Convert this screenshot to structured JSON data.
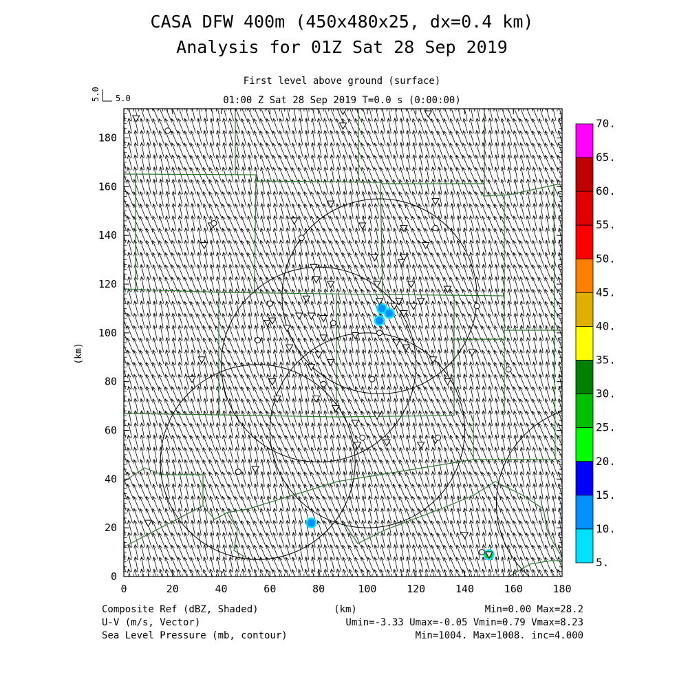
{
  "header": {
    "title_line1": "CASA DFW 400m (450x480x25, dx=0.4 km)",
    "title_line2": "Analysis for 01Z Sat 28 Sep 2019",
    "level": "First level above ground (surface)",
    "time": "01:00 Z Sat 28 Sep 2019    T=0.0 s (0:00:00)"
  },
  "vector_key": {
    "label": "5.0",
    "axis_label": "5.0"
  },
  "footer": {
    "field1": "Composite Ref (dBZ, Shaded)",
    "field2": "U-V (m/s, Vector)",
    "field3": "Sea Level Pressure (mb, contour)",
    "xunit": "(km)",
    "stats1": "Min=0.00 Max=28.2",
    "stats2": "Umin=-3.33 Umax=-0.05 Vmin=0.79 Vmax=8.23",
    "stats3": "Min=1004. Max=1008. inc=4.000"
  },
  "colorbar": {
    "labels": [
      "70.",
      "65.",
      "60.",
      "55.",
      "50.",
      "45.",
      "40.",
      "35.",
      "30.",
      "25.",
      "20.",
      "15.",
      "10.",
      "5."
    ],
    "colors": [
      "#ff00ff",
      "#c00000",
      "#e00000",
      "#ff0000",
      "#ff8000",
      "#e0b000",
      "#ffff00",
      "#008000",
      "#00c000",
      "#00ff00",
      "#0000ff",
      "#0090ff",
      "#00e0ff"
    ]
  },
  "chart_data": {
    "type": "map",
    "xlabel": "",
    "ylabel": "(km)",
    "xlim": [
      0,
      180
    ],
    "ylim": [
      0,
      192
    ],
    "xticks": [
      0,
      20,
      40,
      60,
      80,
      100,
      120,
      140,
      160,
      180
    ],
    "yticks": [
      0,
      20,
      40,
      60,
      80,
      100,
      120,
      140,
      160,
      180
    ],
    "xtick_labels": [
      "0",
      "20",
      "40",
      "60",
      "80",
      "100",
      "120",
      "140",
      "160",
      "180"
    ],
    "ytick_labels": [
      "0",
      "20",
      "40",
      "60",
      "80",
      "100",
      "120",
      "140",
      "160",
      "180"
    ],
    "radar_rings": [
      {
        "center": [
          105,
          115
        ],
        "radius": 40
      },
      {
        "center": [
          80,
          87
        ],
        "radius": 40
      },
      {
        "center": [
          100,
          60
        ],
        "radius": 40
      },
      {
        "center": [
          55,
          47
        ],
        "radius": 40
      },
      {
        "center": [
          193,
          30
        ],
        "radius": 40
      }
    ],
    "reflectivity_cells": [
      {
        "x": 106,
        "y": 110,
        "dbz": 12
      },
      {
        "x": 109,
        "y": 108,
        "dbz": 12
      },
      {
        "x": 105,
        "y": 105,
        "dbz": 10
      },
      {
        "x": 77,
        "y": 22,
        "dbz": 12
      },
      {
        "x": 150,
        "y": 9,
        "dbz": 28.2
      }
    ],
    "wind": {
      "u_min": -3.33,
      "u_max": -0.05,
      "v_min": 0.79,
      "v_max": 8.23
    },
    "station_triangles": [
      [
        90,
        191
      ],
      [
        125,
        190
      ],
      [
        5,
        188
      ],
      [
        90,
        185
      ],
      [
        85,
        153
      ],
      [
        128,
        154
      ],
      [
        36,
        144
      ],
      [
        70,
        146
      ],
      [
        98,
        144
      ],
      [
        115,
        143
      ],
      [
        33,
        136
      ],
      [
        124,
        136
      ],
      [
        115,
        131
      ],
      [
        103,
        131
      ],
      [
        78,
        127
      ],
      [
        114,
        129
      ],
      [
        79,
        122
      ],
      [
        85,
        120
      ],
      [
        104,
        120
      ],
      [
        118,
        120
      ],
      [
        133,
        118
      ],
      [
        75,
        114
      ],
      [
        105,
        113
      ],
      [
        111,
        111
      ],
      [
        113,
        113
      ],
      [
        122,
        113
      ],
      [
        115,
        108
      ],
      [
        119,
        111
      ],
      [
        72,
        107
      ],
      [
        77,
        107
      ],
      [
        82,
        106
      ],
      [
        59,
        104
      ],
      [
        61,
        105
      ],
      [
        67,
        102
      ],
      [
        82,
        98
      ],
      [
        95,
        99
      ],
      [
        112,
        96
      ],
      [
        116,
        94
      ],
      [
        68,
        94
      ],
      [
        80,
        91
      ],
      [
        85,
        88
      ],
      [
        77,
        86
      ],
      [
        32,
        89
      ],
      [
        28,
        81
      ],
      [
        61,
        80
      ],
      [
        127,
        89
      ],
      [
        143,
        92
      ],
      [
        133,
        80
      ],
      [
        63,
        73
      ],
      [
        79,
        73
      ],
      [
        87,
        69
      ],
      [
        104,
        66
      ],
      [
        95,
        63
      ],
      [
        108,
        55
      ],
      [
        96,
        54
      ],
      [
        128,
        56
      ],
      [
        122,
        54
      ],
      [
        54,
        44
      ],
      [
        10,
        22
      ],
      [
        140,
        17
      ],
      [
        150,
        9
      ]
    ],
    "station_circles": [
      [
        18,
        183
      ],
      [
        37,
        145
      ],
      [
        73,
        139
      ],
      [
        128,
        143
      ],
      [
        55,
        97
      ],
      [
        105,
        100
      ],
      [
        60,
        112
      ],
      [
        86,
        104
      ],
      [
        145,
        111
      ],
      [
        158,
        85
      ],
      [
        102,
        81
      ],
      [
        82,
        79
      ],
      [
        98,
        57
      ],
      [
        129,
        57
      ],
      [
        47,
        43
      ],
      [
        147,
        10
      ]
    ]
  }
}
